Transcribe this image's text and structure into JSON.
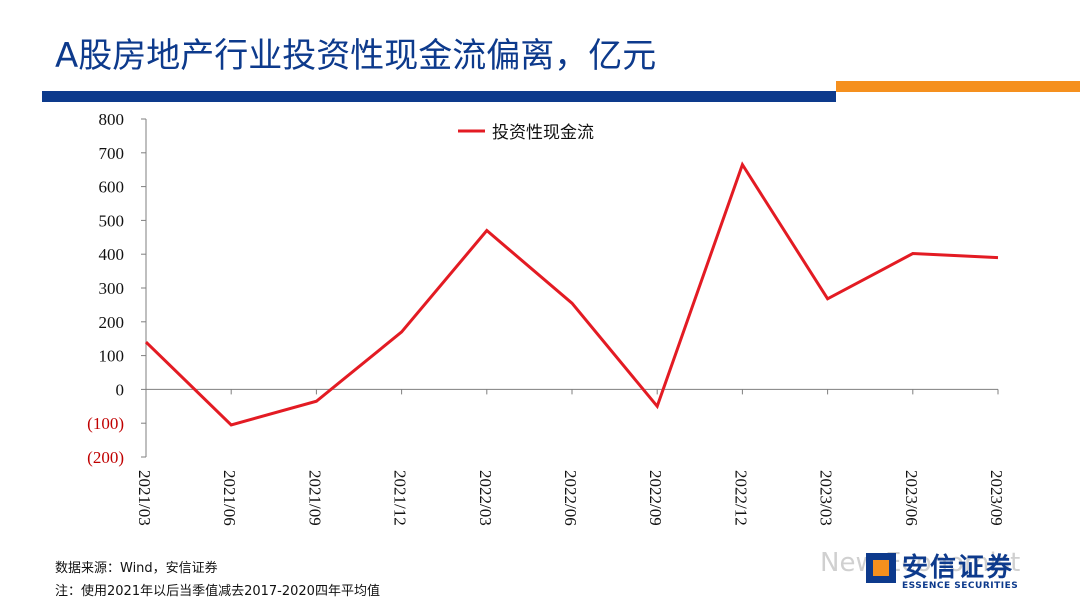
{
  "page": {
    "title": "A股房地产行业投资性现金流偏离，亿元",
    "source_line": "数据来源：Wind，安信证券",
    "note_line": "注：使用2021年以后当季值减去2017-2020四年平均值",
    "watermark": "New Economist",
    "logo_cn": "安信证券",
    "logo_en": "ESSENCE SECURITIES"
  },
  "colors": {
    "brand_blue": "#0d3a8c",
    "brand_orange": "#f5901e",
    "series_red": "#e31b23",
    "negative_tick": "#c00000"
  },
  "chart_data": {
    "type": "line",
    "title": "",
    "xlabel": "",
    "ylabel": "",
    "categories": [
      "2021/03",
      "2021/06",
      "2021/09",
      "2021/12",
      "2022/03",
      "2022/06",
      "2022/09",
      "2022/12",
      "2023/03",
      "2023/06",
      "2023/09"
    ],
    "series": [
      {
        "name": "投资性现金流",
        "color": "#e31b23",
        "values": [
          140,
          -105,
          -35,
          170,
          470,
          255,
          -50,
          665,
          268,
          402,
          390
        ]
      }
    ],
    "ylim": [
      -200,
      800
    ],
    "yticks": [
      800,
      700,
      600,
      500,
      400,
      300,
      200,
      100,
      0,
      -100,
      -200
    ],
    "ytick_labels": [
      "800",
      "700",
      "600",
      "500",
      "400",
      "300",
      "200",
      "100",
      "0",
      "(100)",
      "(200)"
    ],
    "legend_position": "top-center",
    "grid": false
  }
}
